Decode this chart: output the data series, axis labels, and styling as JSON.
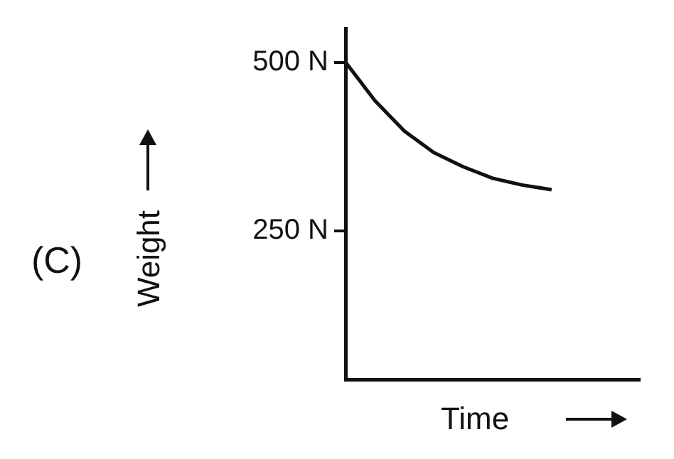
{
  "chart_data": {
    "type": "line",
    "xlabel": "Time",
    "ylabel": "Weight",
    "annotations": [
      "(C)"
    ],
    "categories": [
      null,
      null,
      null,
      null,
      null,
      null,
      null,
      null,
      null,
      null,
      null
    ],
    "series": [
      {
        "color": "#111111",
        "values": [
          500,
          443,
          398,
          366,
          345,
          328,
          318,
          311,
          null,
          null,
          null
        ]
      }
    ],
    "ylim": [
      30,
      550
    ],
    "yticks": [
      {
        "value": 500,
        "label": "500 N"
      },
      {
        "value": 250,
        "label": "250 N"
      }
    ],
    "tick_labels": "y",
    "grid": false,
    "legend": false,
    "marker": "none",
    "line_style": "solid"
  }
}
